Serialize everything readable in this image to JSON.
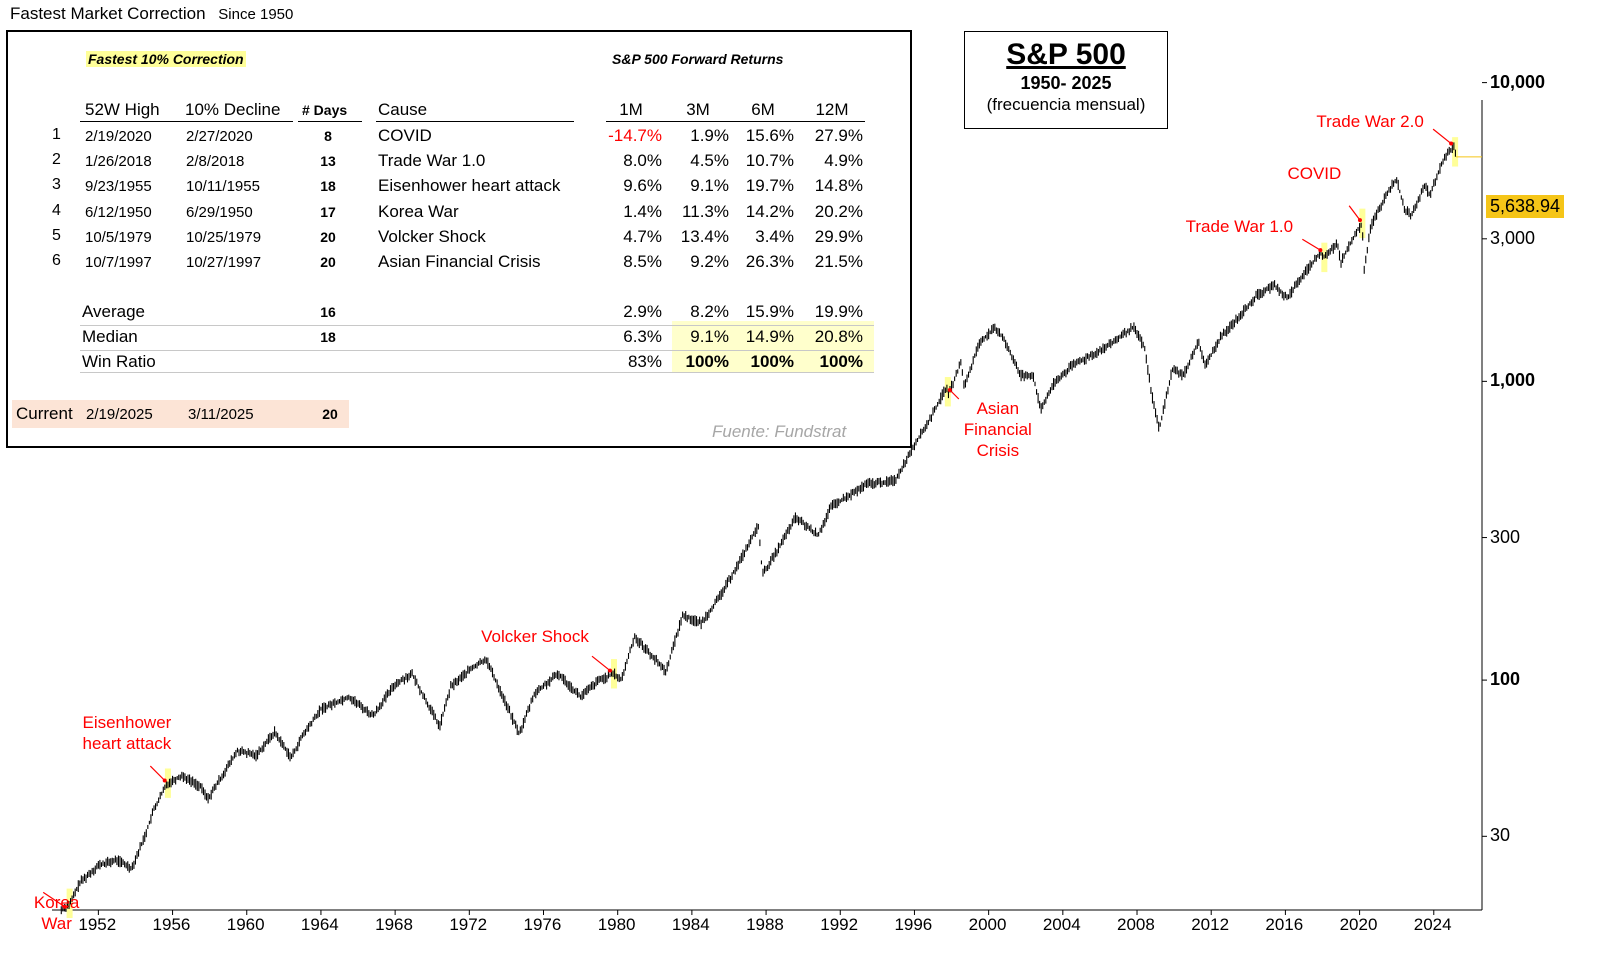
{
  "header": {
    "title": "Fastest Market Correction",
    "subtitle": "Since 1950"
  },
  "table": {
    "section_label": "Fastest 10% Correction",
    "returns_label": "S&P 500  Forward Returns",
    "columns": [
      "52W High",
      "10% Decline",
      "# Days",
      "Cause",
      "1M",
      "3M",
      "6M",
      "12M"
    ],
    "rows": [
      {
        "rank": "1",
        "high": "2/19/2020",
        "decline": "2/27/2020",
        "days": "8",
        "cause": "COVID",
        "m1": "-14.7%",
        "m3": "1.9%",
        "m6": "15.6%",
        "m12": "27.9%"
      },
      {
        "rank": "2",
        "high": "1/26/2018",
        "decline": "2/8/2018",
        "days": "13",
        "cause": "Trade War 1.0",
        "m1": "8.0%",
        "m3": "4.5%",
        "m6": "10.7%",
        "m12": "4.9%"
      },
      {
        "rank": "3",
        "high": "9/23/1955",
        "decline": "10/11/1955",
        "days": "18",
        "cause": "Eisenhower heart attack",
        "m1": "9.6%",
        "m3": "9.1%",
        "m6": "19.7%",
        "m12": "14.8%"
      },
      {
        "rank": "4",
        "high": "6/12/1950",
        "decline": "6/29/1950",
        "days": "17",
        "cause": "Korea War",
        "m1": "1.4%",
        "m3": "11.3%",
        "m6": "14.2%",
        "m12": "20.2%"
      },
      {
        "rank": "5",
        "high": "10/5/1979",
        "decline": "10/25/1979",
        "days": "20",
        "cause": "Volcker Shock",
        "m1": "4.7%",
        "m3": "13.4%",
        "m6": "3.4%",
        "m12": "29.9%"
      },
      {
        "rank": "6",
        "high": "10/7/1997",
        "decline": "10/27/1997",
        "days": "20",
        "cause": "Asian Financial Crisis",
        "m1": "8.5%",
        "m3": "9.2%",
        "m6": "26.3%",
        "m12": "21.5%"
      }
    ],
    "summary": [
      {
        "label": "Average",
        "days": "16",
        "m1": "2.9%",
        "m3": "8.2%",
        "m6": "15.9%",
        "m12": "19.9%"
      },
      {
        "label": "Median",
        "days": "18",
        "m1": "6.3%",
        "m3": "9.1%",
        "m6": "14.9%",
        "m12": "20.8%"
      },
      {
        "label": "Win Ratio",
        "days": "",
        "m1": "83%",
        "m3": "100%",
        "m6": "100%",
        "m12": "100%"
      }
    ],
    "current": {
      "label": "Current",
      "high": "2/19/2025",
      "decline": "3/11/2025",
      "days": "20"
    },
    "source": "Fuente: Fundstrat"
  },
  "title_box": {
    "title": "S&P 500",
    "range": "1950- 2025",
    "frequency": "(frecuencia mensual)"
  },
  "colors": {
    "annotation": "#ff0000",
    "highlight_yellow": "#ffff99",
    "current_row": "#fce4d6",
    "last_value_bg": "#f5c518",
    "price_line": "#000000"
  },
  "chart_data": {
    "type": "line",
    "series": [
      {
        "values": [
          [
            1950,
            17
          ],
          [
            1950.5,
            18
          ],
          [
            1951,
            21
          ],
          [
            1952,
            24
          ],
          [
            1953,
            25
          ],
          [
            1953.8,
            23.5
          ],
          [
            1954.5,
            30
          ],
          [
            1955,
            37
          ],
          [
            1955.7,
            45
          ],
          [
            1956.5,
            48
          ],
          [
            1957.5,
            44
          ],
          [
            1957.9,
            40
          ],
          [
            1958.5,
            46
          ],
          [
            1959.5,
            58
          ],
          [
            1960.5,
            56
          ],
          [
            1961.5,
            67
          ],
          [
            1962.4,
            55
          ],
          [
            1963,
            65
          ],
          [
            1964,
            80
          ],
          [
            1965.5,
            88
          ],
          [
            1966.8,
            76
          ],
          [
            1968,
            97
          ],
          [
            1968.9,
            105
          ],
          [
            1970.4,
            70
          ],
          [
            1971,
            95
          ],
          [
            1972,
            108
          ],
          [
            1972.9,
            118
          ],
          [
            1974.7,
            66
          ],
          [
            1975.5,
            90
          ],
          [
            1976.8,
            105
          ],
          [
            1978,
            88
          ],
          [
            1979,
            100
          ],
          [
            1979.8,
            105
          ],
          [
            1980.2,
            100
          ],
          [
            1980.9,
            140
          ],
          [
            1982.6,
            107
          ],
          [
            1983.5,
            165
          ],
          [
            1984.5,
            155
          ],
          [
            1985.5,
            190
          ],
          [
            1986.5,
            245
          ],
          [
            1987.6,
            330
          ],
          [
            1987.8,
            225
          ],
          [
            1988.5,
            265
          ],
          [
            1989.6,
            350
          ],
          [
            1990.8,
            305
          ],
          [
            1991.5,
            380
          ],
          [
            1992.5,
            415
          ],
          [
            1993.5,
            455
          ],
          [
            1994.5,
            460
          ],
          [
            1995,
            470
          ],
          [
            1995.9,
            600
          ],
          [
            1996.8,
            740
          ],
          [
            1997.7,
            950
          ],
          [
            1997.85,
            910
          ],
          [
            1998.5,
            1150
          ],
          [
            1998.7,
            960
          ],
          [
            1999.5,
            1350
          ],
          [
            2000.3,
            1500
          ],
          [
            2000.8,
            1400
          ],
          [
            2001.7,
            1050
          ],
          [
            2002.4,
            1050
          ],
          [
            2002.8,
            800
          ],
          [
            2003.5,
            980
          ],
          [
            2004.5,
            1130
          ],
          [
            2005.5,
            1220
          ],
          [
            2006.5,
            1320
          ],
          [
            2007.8,
            1520
          ],
          [
            2008.4,
            1300
          ],
          [
            2008.8,
            900
          ],
          [
            2009.2,
            690
          ],
          [
            2009.9,
            1100
          ],
          [
            2010.5,
            1050
          ],
          [
            2011.3,
            1350
          ],
          [
            2011.7,
            1130
          ],
          [
            2012.5,
            1400
          ],
          [
            2013.5,
            1650
          ],
          [
            2014.5,
            1950
          ],
          [
            2015.4,
            2100
          ],
          [
            2016.1,
            1900
          ],
          [
            2016.9,
            2250
          ],
          [
            2017.9,
            2700
          ],
          [
            2018.1,
            2600
          ],
          [
            2018.8,
            2900
          ],
          [
            2018.98,
            2500
          ],
          [
            2019.9,
            3230
          ],
          [
            2020.15,
            3380
          ],
          [
            2020.22,
            2300
          ],
          [
            2020.6,
            3300
          ],
          [
            2021.5,
            4300
          ],
          [
            2021.99,
            4760
          ],
          [
            2022.4,
            3800
          ],
          [
            2022.75,
            3580
          ],
          [
            2023.5,
            4500
          ],
          [
            2023.8,
            4200
          ],
          [
            2024.5,
            5500
          ],
          [
            2024.95,
            6000
          ],
          [
            2025.1,
            6100
          ],
          [
            2025.2,
            5638.94
          ]
        ]
      }
    ],
    "last_value": "5,638.94",
    "yscale": "log",
    "ylim": [
      17,
      15000
    ],
    "yticks": [
      {
        "value": 30,
        "label": "30",
        "bold": false
      },
      {
        "value": 100,
        "label": "100",
        "bold": true
      },
      {
        "value": 300,
        "label": "300",
        "bold": false
      },
      {
        "value": 1000,
        "label": "1,000",
        "bold": true
      },
      {
        "value": 3000,
        "label": "3,000",
        "bold": false
      },
      {
        "value": 10000,
        "label": "10,000",
        "bold": true
      }
    ],
    "xlim": [
      1949.5,
      2026.6
    ],
    "xticks": [
      "1952",
      "1956",
      "1960",
      "1964",
      "1968",
      "1972",
      "1976",
      "1980",
      "1984",
      "1988",
      "1992",
      "1996",
      "2000",
      "2004",
      "2008",
      "2012",
      "2016",
      "2020",
      "2024"
    ],
    "highlights": [
      1950.45,
      1955.75,
      1979.8,
      1997.8,
      2018.1,
      2020.15,
      2025.15
    ],
    "annotations": [
      {
        "text": "Korea\nWar",
        "x": 1950.45,
        "y": 17
      },
      {
        "text": "Eisenhower\nheart attack",
        "x": 1955.75,
        "y": 45
      },
      {
        "text": "Volcker Shock",
        "x": 1979.8,
        "y": 105
      },
      {
        "text": "Asian\nFinancial\nCrisis",
        "x": 1997.8,
        "y": 950
      },
      {
        "text": "Trade War 1.0",
        "x": 2018.1,
        "y": 2700
      },
      {
        "text": "COVID",
        "x": 2020.15,
        "y": 3380
      },
      {
        "text": "Trade War 2.0",
        "x": 2025.15,
        "y": 6100
      }
    ]
  }
}
